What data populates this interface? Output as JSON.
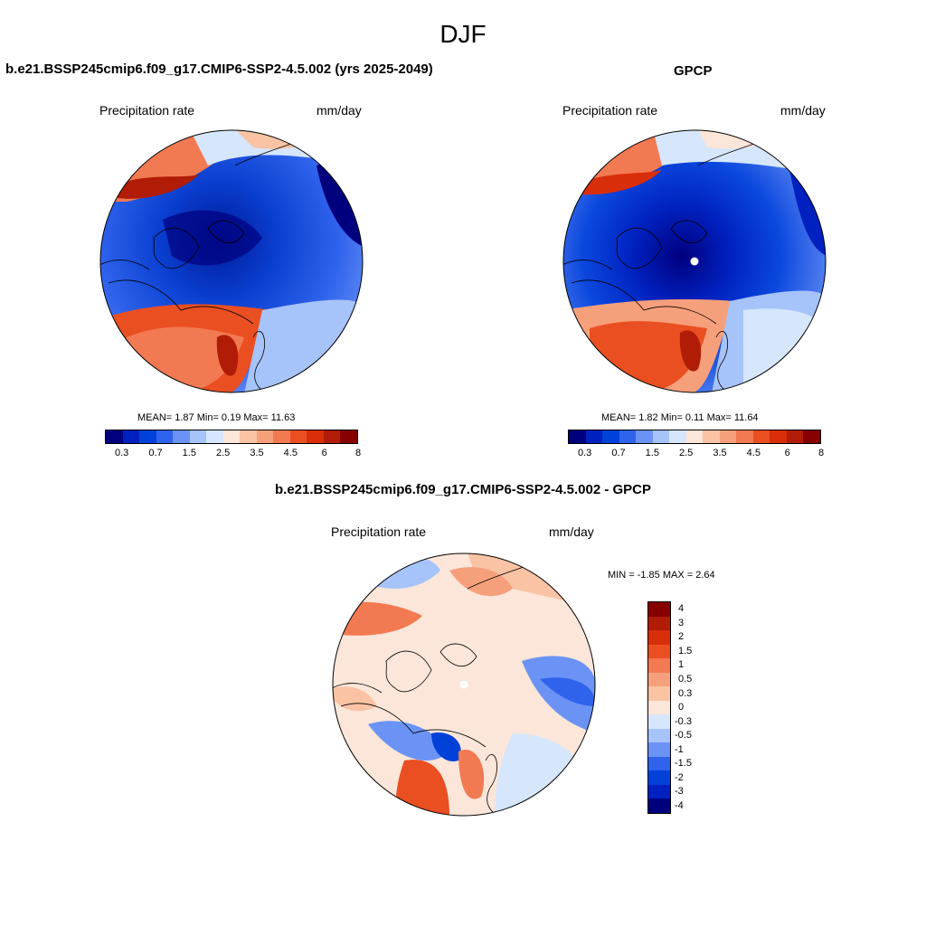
{
  "season": "DJF",
  "panels": [
    {
      "title": "b.e21.BSSP245cmip6.f09_g17.CMIP6-SSP2-4.5.002 (yrs 2025-2049)",
      "left_label": "Precipitation rate",
      "right_label": "mm/day",
      "stats": "MEAN=   1.87  Min=   0.19  Max=  11.63"
    },
    {
      "title": "GPCP",
      "left_label": "Precipitation rate",
      "right_label": "mm/day",
      "stats": "MEAN=   1.82  Min=   0.11  Max=  11.64"
    },
    {
      "title": "b.e21.BSSP245cmip6.f09_g17.CMIP6-SSP2-4.5.002 - GPCP",
      "left_label": "Precipitation rate",
      "right_label": "mm/day",
      "stats": "MIN =  -1.85 MAX =   2.64"
    }
  ],
  "abs_colorbar": {
    "labels": [
      "0.3",
      "0.7",
      "1.5",
      "2.5",
      "3.5",
      "4.5",
      "6",
      "8"
    ],
    "colors": [
      "#00007f",
      "#0021bf",
      "#0041d9",
      "#2f63ec",
      "#6b93f5",
      "#a6c3fa",
      "#d6e6fc",
      "#fbe6d9",
      "#f9c3a4",
      "#f6a07b",
      "#f27a52",
      "#ea4f22",
      "#d92e0a",
      "#b01c06",
      "#860000"
    ]
  },
  "diff_colorbar": {
    "labels": [
      "4",
      "3",
      "2",
      "1.5",
      "1",
      "0.5",
      "0.3",
      "0",
      "-0.3",
      "-0.5",
      "-1",
      "-1.5",
      "-2",
      "-3",
      "-4"
    ],
    "colors": [
      "#860000",
      "#b01c06",
      "#d92e0a",
      "#ea4f22",
      "#f27a52",
      "#f6a07b",
      "#f9c3a4",
      "#fbe6d9",
      "#d6e6fc",
      "#a6c3fa",
      "#6b93f5",
      "#2f63ec",
      "#0041d9",
      "#0021bf",
      "#00007f"
    ]
  }
}
